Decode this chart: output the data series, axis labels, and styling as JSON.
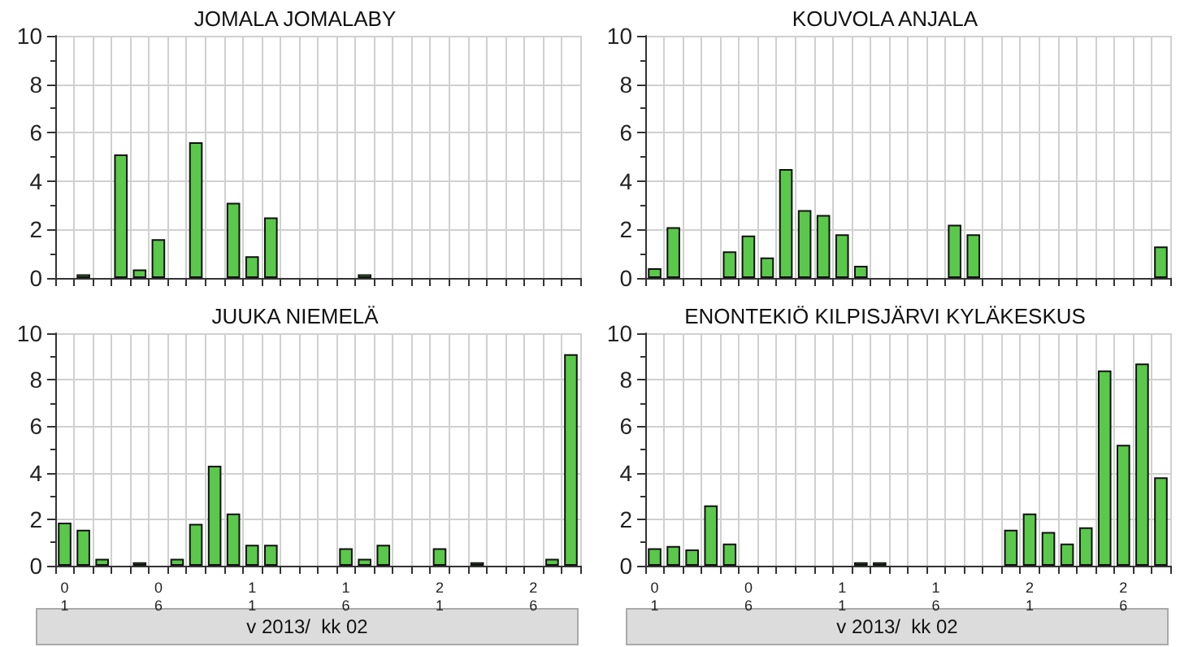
{
  "chart_data": [
    {
      "type": "bar",
      "title": "JOMALA JOMALABY",
      "categories": [
        "01",
        null,
        null,
        null,
        null,
        "06",
        null,
        null,
        null,
        null,
        "11",
        null,
        null,
        null,
        null,
        "16",
        null,
        null,
        null,
        null,
        "21",
        null,
        null,
        null,
        null,
        "26",
        null,
        null
      ],
      "values": [
        0,
        0.15,
        0,
        5.1,
        0.35,
        1.6,
        0,
        5.6,
        0,
        3.1,
        0.9,
        2.5,
        0,
        0,
        0,
        0,
        0.15,
        0,
        0,
        0,
        0,
        0,
        0,
        0,
        0,
        0,
        0,
        0
      ],
      "color": "#5ac84a",
      "ylim": [
        0,
        10
      ],
      "yticks": [
        0,
        2,
        4,
        6,
        8,
        10
      ],
      "grid": true,
      "tick_labels": "y"
    },
    {
      "type": "bar",
      "title": "KOUVOLA ANJALA",
      "categories": [
        "01",
        null,
        null,
        null,
        null,
        "06",
        null,
        null,
        null,
        null,
        "11",
        null,
        null,
        null,
        null,
        "16",
        null,
        null,
        null,
        null,
        "21",
        null,
        null,
        null,
        null,
        "26",
        null,
        null
      ],
      "values": [
        0.4,
        2.1,
        0,
        0,
        1.1,
        1.75,
        0.85,
        4.5,
        2.8,
        2.6,
        1.8,
        0.5,
        0,
        0,
        0,
        0,
        2.2,
        1.8,
        0,
        0,
        0,
        0,
        0,
        0,
        0,
        0,
        0,
        1.3
      ],
      "color": "#5ac84a",
      "ylim": [
        0,
        10
      ],
      "yticks": [
        0,
        2,
        4,
        6,
        8,
        10
      ],
      "grid": true,
      "tick_labels": "y"
    },
    {
      "type": "bar",
      "title": "JUUKA NIEMELÄ",
      "xlabel": "v 2013/  kk 02",
      "categories": [
        "01",
        null,
        null,
        null,
        null,
        "06",
        null,
        null,
        null,
        null,
        "11",
        null,
        null,
        null,
        null,
        "16",
        null,
        null,
        null,
        null,
        "21",
        null,
        null,
        null,
        null,
        "26",
        null,
        null
      ],
      "values": [
        1.85,
        1.55,
        0.3,
        0,
        0.15,
        0,
        0.3,
        1.8,
        4.3,
        2.25,
        0.9,
        0.9,
        0,
        0,
        0,
        0.75,
        0.3,
        0.9,
        0,
        0,
        0.75,
        0,
        0.15,
        0,
        0,
        0,
        0.3,
        9.1
      ],
      "color": "#5ac84a",
      "ylim": [
        0,
        10
      ],
      "yticks": [
        0,
        2,
        4,
        6,
        8,
        10
      ],
      "grid": true
    },
    {
      "type": "bar",
      "title": "ENONTEKIÖ KILPISJÄRVI KYLÄKESKUS",
      "xlabel": "v 2013/  kk 02",
      "categories": [
        "01",
        null,
        null,
        null,
        null,
        "06",
        null,
        null,
        null,
        null,
        "11",
        null,
        null,
        null,
        null,
        "16",
        null,
        null,
        null,
        null,
        "21",
        null,
        null,
        null,
        null,
        "26",
        null,
        null
      ],
      "values": [
        0.75,
        0.85,
        0.7,
        2.6,
        0.95,
        0,
        0,
        0,
        0,
        0,
        0,
        0.15,
        0.15,
        0,
        0,
        0,
        0,
        0,
        0,
        1.55,
        2.25,
        1.45,
        0.95,
        1.65,
        8.4,
        5.2,
        8.7,
        3.8
      ],
      "color": "#5ac84a",
      "ylim": [
        0,
        10
      ],
      "yticks": [
        0,
        2,
        4,
        6,
        8,
        10
      ],
      "grid": true
    }
  ]
}
